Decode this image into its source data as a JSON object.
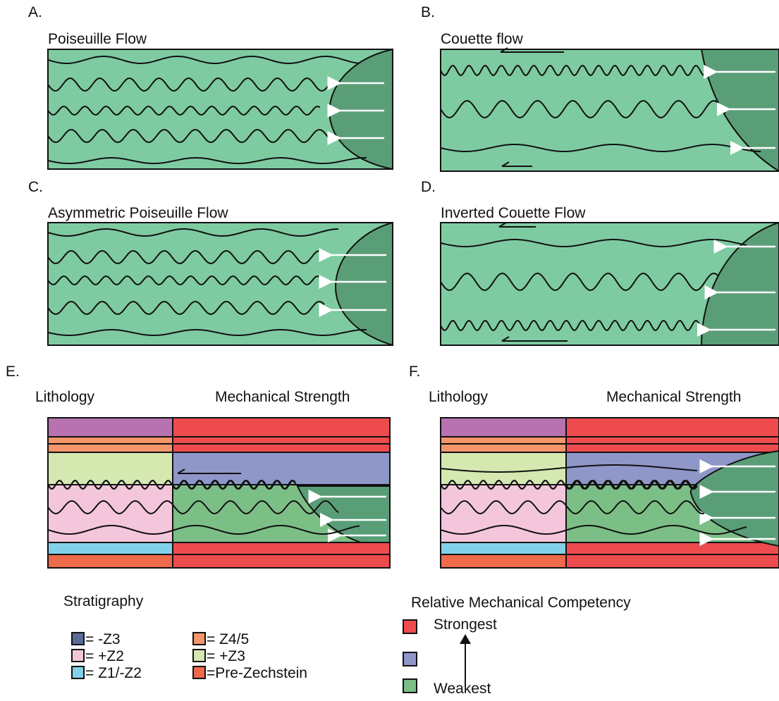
{
  "panels": [
    {
      "letter": "A.",
      "title": "Poiseuille Flow"
    },
    {
      "letter": "B.",
      "title": "Couette flow"
    },
    {
      "letter": "C.",
      "title": "Asymmetric Poiseuille Flow"
    },
    {
      "letter": "D.",
      "title": "Inverted Couette Flow"
    },
    {
      "letter": "E.",
      "left_title": "Lithology",
      "right_title": "Mechanical Strength"
    },
    {
      "letter": "F.",
      "left_title": "Lithology",
      "right_title": "Mechanical Strength"
    }
  ],
  "stratigraphy": {
    "title": "Stratigraphy",
    "items": [
      "= -Z3",
      "= +Z2",
      "= Z1/-Z2",
      "= Z4/5",
      "= +Z3",
      "=Pre-Zechstein"
    ]
  },
  "competency": {
    "title": "Relative Mechanical Competency",
    "strongest": "Strongest",
    "weakest": "Weakest"
  }
}
